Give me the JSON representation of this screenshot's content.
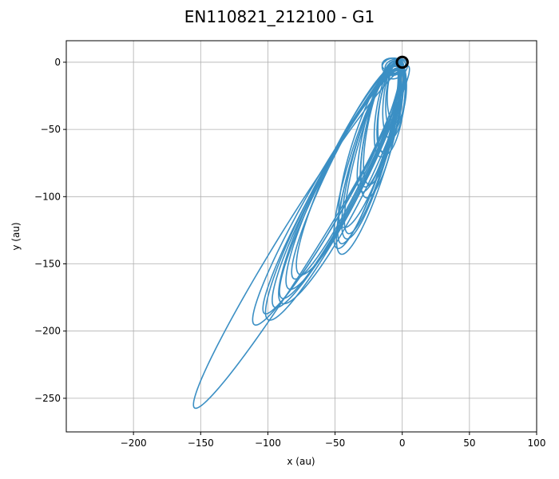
{
  "chart_data": {
    "type": "line",
    "title": "EN110821_212100 - G1",
    "xlabel": "x (au)",
    "ylabel": "y (au)",
    "xlim": [
      -250,
      100
    ],
    "ylim": [
      -275,
      16
    ],
    "xticks": [
      -200,
      -150,
      -100,
      -50,
      0,
      50,
      100
    ],
    "yticks": [
      -250,
      -200,
      -150,
      -100,
      -50,
      0
    ],
    "grid": true,
    "line_color": "#3b8fc4",
    "marker_color": "#000000",
    "orbits": [
      {
        "cx": -75,
        "cy": -130,
        "a": 150,
        "b": 14,
        "angle": 58
      },
      {
        "cx": -55,
        "cy": -100,
        "a": 110,
        "b": 14,
        "angle": 60
      },
      {
        "cx": -52,
        "cy": -96,
        "a": 104,
        "b": 13,
        "angle": 61
      },
      {
        "cx": -50,
        "cy": -98,
        "a": 106,
        "b": 16,
        "angle": 62
      },
      {
        "cx": -48,
        "cy": -94,
        "a": 100,
        "b": 15,
        "angle": 62
      },
      {
        "cx": -46,
        "cy": -90,
        "a": 96,
        "b": 14,
        "angle": 63
      },
      {
        "cx": -45,
        "cy": -92,
        "a": 98,
        "b": 17,
        "angle": 63
      },
      {
        "cx": -44,
        "cy": -86,
        "a": 92,
        "b": 15,
        "angle": 64
      },
      {
        "cx": -42,
        "cy": -82,
        "a": 88,
        "b": 13,
        "angle": 64
      },
      {
        "cx": -40,
        "cy": -80,
        "a": 86,
        "b": 15,
        "angle": 65
      },
      {
        "cx": -26,
        "cy": -70,
        "a": 72,
        "b": 12,
        "angle": 72
      },
      {
        "cx": -25,
        "cy": -68,
        "a": 70,
        "b": 11,
        "angle": 73
      },
      {
        "cx": -24,
        "cy": -72,
        "a": 74,
        "b": 13,
        "angle": 73
      },
      {
        "cx": -23,
        "cy": -66,
        "a": 68,
        "b": 12,
        "angle": 74
      },
      {
        "cx": -22,
        "cy": -64,
        "a": 66,
        "b": 11,
        "angle": 74
      },
      {
        "cx": -24,
        "cy": -62,
        "a": 64,
        "b": 13,
        "angle": 72
      },
      {
        "cx": -18,
        "cy": -48,
        "a": 50,
        "b": 10,
        "angle": 76
      },
      {
        "cx": -17,
        "cy": -46,
        "a": 48,
        "b": 9,
        "angle": 77
      },
      {
        "cx": -16,
        "cy": -50,
        "a": 52,
        "b": 11,
        "angle": 78
      },
      {
        "cx": -15,
        "cy": -45,
        "a": 47,
        "b": 10,
        "angle": 78
      },
      {
        "cx": -10,
        "cy": -35,
        "a": 36,
        "b": 9,
        "angle": 80
      },
      {
        "cx": -9,
        "cy": -33,
        "a": 34,
        "b": 8,
        "angle": 80
      },
      {
        "cx": -8,
        "cy": -34,
        "a": 35,
        "b": 9,
        "angle": 82
      },
      {
        "cx": -6,
        "cy": -28,
        "a": 29,
        "b": 8,
        "angle": 84
      },
      {
        "cx": -5,
        "cy": -25,
        "a": 26,
        "b": 7,
        "angle": 85
      },
      {
        "cx": -4,
        "cy": -22,
        "a": 23,
        "b": 7,
        "angle": 86
      },
      {
        "cx": -6,
        "cy": -3,
        "a": 7,
        "b": 5,
        "angle": 20
      },
      {
        "cx": -5,
        "cy": -4,
        "a": 8,
        "b": 5,
        "angle": 30
      },
      {
        "cx": -7,
        "cy": -3,
        "a": 8,
        "b": 6,
        "angle": 10
      },
      {
        "cx": -4,
        "cy": -5,
        "a": 9,
        "b": 6,
        "angle": 40
      },
      {
        "cx": -8,
        "cy": -2,
        "a": 7,
        "b": 5,
        "angle": 0
      }
    ],
    "marker": {
      "x": 0,
      "y": 0,
      "r": 4
    }
  }
}
